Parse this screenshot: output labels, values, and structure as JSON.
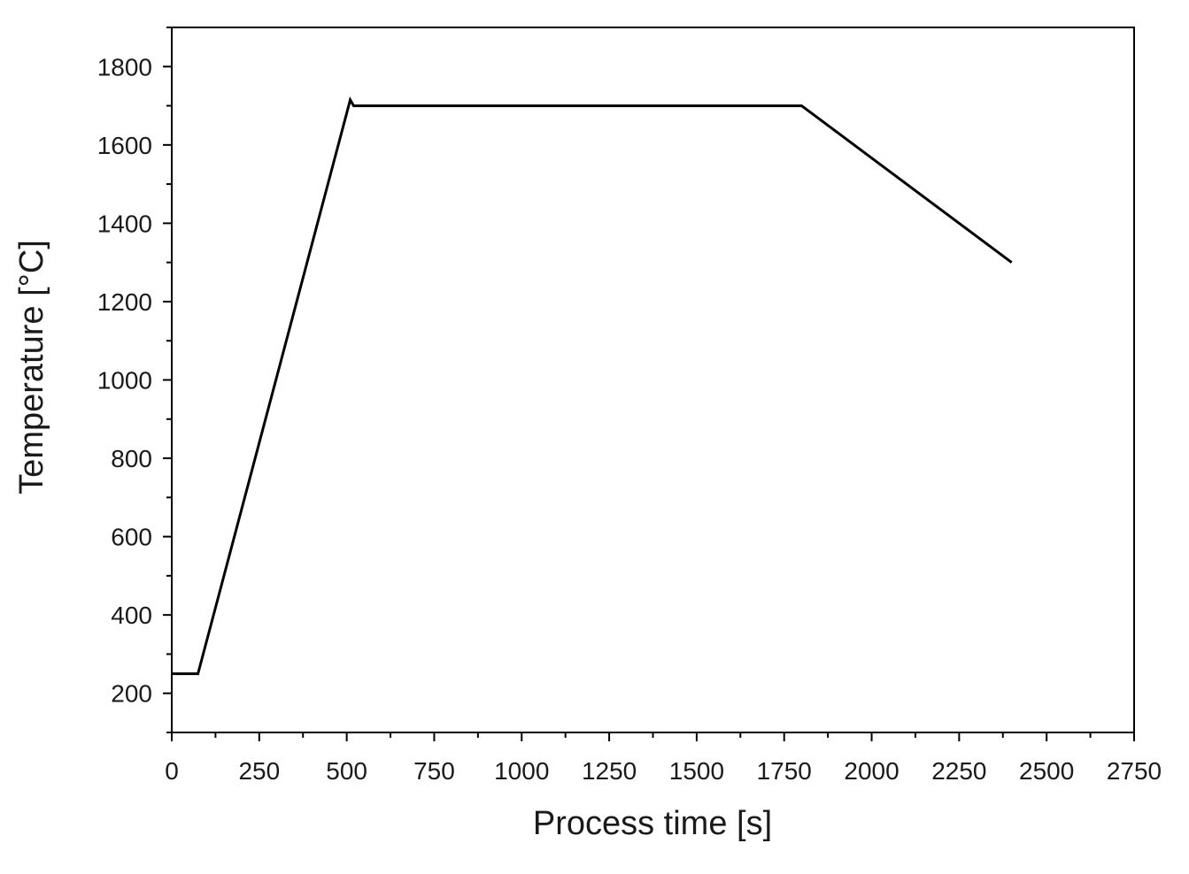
{
  "chart_data": {
    "type": "line",
    "title": "",
    "xlabel": "Process time [s]",
    "ylabel": "Temperature [°C]",
    "xlim": [
      0,
      2750
    ],
    "ylim": [
      100,
      1900
    ],
    "x_ticks": [
      0,
      250,
      500,
      750,
      1000,
      1250,
      1500,
      1750,
      2000,
      2250,
      2500,
      2750
    ],
    "x_tick_labels": [
      "0",
      "250",
      "500",
      "750",
      "1000",
      "1250",
      "1500",
      "1750",
      "2000",
      "2250",
      "2500",
      "2750"
    ],
    "y_ticks": [
      200,
      400,
      600,
      800,
      1000,
      1200,
      1400,
      1600,
      1800
    ],
    "y_tick_labels": [
      "200",
      "400",
      "600",
      "800",
      "1000",
      "1200",
      "1400",
      "1600",
      "1800"
    ],
    "grid": false,
    "line_color": "#000000",
    "series": [
      {
        "x": [
          0,
          75,
          510,
          520,
          1800,
          2400
        ],
        "y": [
          250,
          250,
          1715,
          1700,
          1700,
          1300
        ]
      }
    ]
  }
}
